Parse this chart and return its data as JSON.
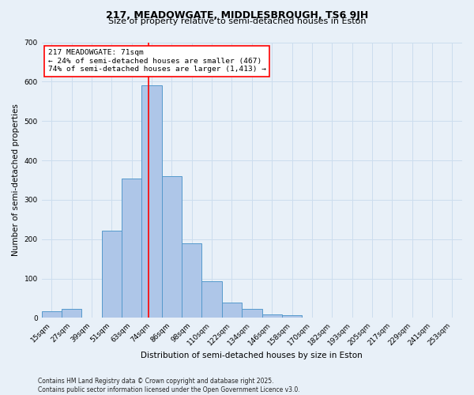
{
  "title": "217, MEADOWGATE, MIDDLESBROUGH, TS6 9JH",
  "subtitle": "Size of property relative to semi-detached houses in Eston",
  "xlabel": "Distribution of semi-detached houses by size in Eston",
  "ylabel": "Number of semi-detached properties",
  "footer_line1": "Contains HM Land Registry data © Crown copyright and database right 2025.",
  "footer_line2": "Contains public sector information licensed under the Open Government Licence v3.0.",
  "bin_labels": [
    "15sqm",
    "27sqm",
    "39sqm",
    "51sqm",
    "63sqm",
    "74sqm",
    "86sqm",
    "98sqm",
    "110sqm",
    "122sqm",
    "134sqm",
    "146sqm",
    "158sqm",
    "170sqm",
    "182sqm",
    "193sqm",
    "205sqm",
    "217sqm",
    "229sqm",
    "241sqm",
    "253sqm"
  ],
  "bar_heights": [
    18,
    24,
    0,
    222,
    355,
    590,
    360,
    190,
    93,
    40,
    24,
    10,
    7,
    0,
    0,
    0,
    0,
    0,
    0,
    0,
    0
  ],
  "bar_color": "#aec6e8",
  "bar_edge_color": "#5599cc",
  "property_label": "217 MEADOWGATE: 71sqm",
  "annotation_line1": "← 24% of semi-detached houses are smaller (467)",
  "annotation_line2": "74% of semi-detached houses are larger (1,413) →",
  "vline_color": "red",
  "vline_x_index": 4.83,
  "ylim": [
    0,
    700
  ],
  "yticks": [
    0,
    100,
    200,
    300,
    400,
    500,
    600,
    700
  ],
  "grid_color": "#ccddee",
  "bg_color": "#e8f0f8",
  "plot_bg_color": "#e8f0f8",
  "title_fontsize": 9,
  "subtitle_fontsize": 8,
  "xlabel_fontsize": 7.5,
  "ylabel_fontsize": 7.5,
  "tick_fontsize": 6.5,
  "annot_fontsize": 6.8,
  "footer_fontsize": 5.5
}
